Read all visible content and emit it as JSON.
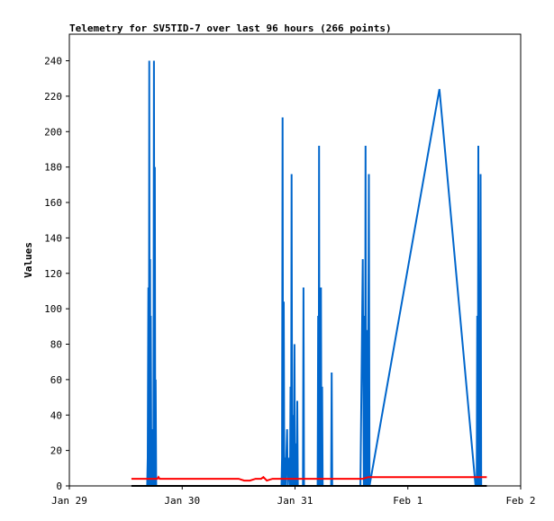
{
  "chart_data": {
    "type": "line",
    "title": "Telemetry for SV5TID-7 over last 96 hours (266 points)",
    "ylabel": "Values",
    "xlabel": "",
    "xlim": [
      0,
      4
    ],
    "ylim": [
      0,
      255
    ],
    "x_ticks": [
      {
        "x": 0,
        "label": "Jan 29"
      },
      {
        "x": 1,
        "label": "Jan 30"
      },
      {
        "x": 2,
        "label": "Jan 31"
      },
      {
        "x": 3,
        "label": "Feb 1"
      },
      {
        "x": 4,
        "label": "Feb 2"
      }
    ],
    "y_ticks": [
      0,
      20,
      40,
      60,
      80,
      100,
      120,
      140,
      160,
      180,
      200,
      220,
      240
    ],
    "grid": false,
    "series": [
      {
        "color": "#0066cc",
        "points": [
          [
            0.69,
            0
          ],
          [
            0.695,
            16
          ],
          [
            0.7,
            112
          ],
          [
            0.705,
            0
          ],
          [
            0.708,
            240
          ],
          [
            0.712,
            0
          ],
          [
            0.715,
            128
          ],
          [
            0.72,
            0
          ],
          [
            0.722,
            96
          ],
          [
            0.727,
            0
          ],
          [
            0.73,
            32
          ],
          [
            0.735,
            0
          ],
          [
            0.745,
            0
          ],
          [
            0.75,
            240
          ],
          [
            0.755,
            0
          ],
          [
            0.758,
            180
          ],
          [
            0.762,
            0
          ],
          [
            0.765,
            60
          ],
          [
            0.77,
            0
          ],
          [
            1.88,
            0
          ],
          [
            1.885,
            16
          ],
          [
            1.89,
            208
          ],
          [
            1.895,
            0
          ],
          [
            1.9,
            104
          ],
          [
            1.905,
            0
          ],
          [
            1.91,
            16
          ],
          [
            1.915,
            0
          ],
          [
            1.93,
            32
          ],
          [
            1.935,
            0
          ],
          [
            1.95,
            16
          ],
          [
            1.955,
            0
          ],
          [
            1.96,
            56
          ],
          [
            1.965,
            0
          ],
          [
            1.97,
            176
          ],
          [
            1.975,
            0
          ],
          [
            1.985,
            40
          ],
          [
            1.99,
            0
          ],
          [
            1.995,
            80
          ],
          [
            2.0,
            0
          ],
          [
            2.01,
            24
          ],
          [
            2.015,
            0
          ],
          [
            2.02,
            48
          ],
          [
            2.025,
            0
          ],
          [
            2.07,
            0
          ],
          [
            2.075,
            112
          ],
          [
            2.08,
            0
          ],
          [
            2.2,
            0
          ],
          [
            2.205,
            96
          ],
          [
            2.21,
            0
          ],
          [
            2.213,
            192
          ],
          [
            2.217,
            0
          ],
          [
            2.22,
            96
          ],
          [
            2.225,
            0
          ],
          [
            2.23,
            112
          ],
          [
            2.235,
            0
          ],
          [
            2.24,
            56
          ],
          [
            2.245,
            0
          ],
          [
            2.32,
            0
          ],
          [
            2.325,
            64
          ],
          [
            2.33,
            0
          ],
          [
            2.58,
            0
          ],
          [
            2.6,
            128
          ],
          [
            2.61,
            0
          ],
          [
            2.615,
            96
          ],
          [
            2.62,
            0
          ],
          [
            2.625,
            192
          ],
          [
            2.63,
            0
          ],
          [
            2.64,
            88
          ],
          [
            2.645,
            0
          ],
          [
            2.655,
            176
          ],
          [
            2.66,
            0
          ],
          [
            3.28,
            224
          ],
          [
            3.6,
            0
          ],
          [
            3.61,
            0
          ],
          [
            3.615,
            96
          ],
          [
            3.62,
            0
          ],
          [
            3.625,
            192
          ],
          [
            3.63,
            0
          ],
          [
            3.64,
            0
          ],
          [
            3.645,
            176
          ],
          [
            3.65,
            0
          ]
        ]
      },
      {
        "color": "#ff0000",
        "points": [
          [
            0.55,
            4
          ],
          [
            0.78,
            4
          ],
          [
            0.79,
            5
          ],
          [
            0.8,
            4
          ],
          [
            1.5,
            4
          ],
          [
            1.55,
            3
          ],
          [
            1.6,
            3
          ],
          [
            1.65,
            4
          ],
          [
            1.7,
            4
          ],
          [
            1.72,
            5
          ],
          [
            1.75,
            3
          ],
          [
            1.8,
            4
          ],
          [
            2.0,
            4
          ],
          [
            2.05,
            4
          ],
          [
            2.3,
            4
          ],
          [
            2.6,
            4
          ],
          [
            2.65,
            5
          ],
          [
            2.8,
            5
          ],
          [
            3.0,
            5
          ],
          [
            3.2,
            5
          ],
          [
            3.5,
            5
          ],
          [
            3.7,
            5
          ]
        ]
      },
      {
        "color": "#000000",
        "points": [
          [
            0.55,
            0
          ],
          [
            3.7,
            0
          ]
        ]
      }
    ]
  }
}
